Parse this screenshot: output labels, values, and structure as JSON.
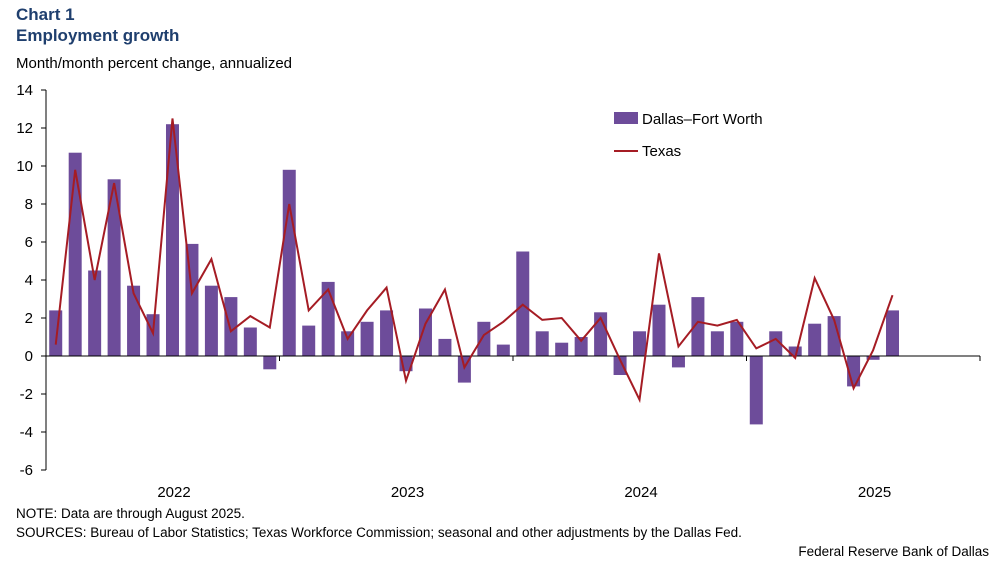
{
  "header": {
    "chart_label": "Chart 1",
    "title": "Employment growth",
    "subtitle": "Month/month  percent change, annualized"
  },
  "footer": {
    "note": "NOTE: Data are through August 2025.",
    "sources": "SOURCES: Bureau of Labor Statistics; Texas Workforce Commission; seasonal and other adjustments by the Dallas Fed.",
    "credit": "Federal Reserve Bank of Dallas"
  },
  "chart_data": {
    "type": "bar+line",
    "title": "Employment growth",
    "ylabel": "Month/month  percent change, annualized",
    "ylim": [
      -6,
      14
    ],
    "yticks": [
      -6,
      -4,
      -2,
      0,
      2,
      4,
      6,
      8,
      10,
      12,
      14
    ],
    "xtick_labels": [
      "2022",
      "2023",
      "2024",
      "2025"
    ],
    "x_start": "2022-01",
    "x_end": "2025-08",
    "legend_position": "top-right",
    "grid": false,
    "series": [
      {
        "name": "Dallas–Fort Worth",
        "type": "bar",
        "color": "#6d4c9a",
        "values": [
          2.4,
          10.7,
          4.5,
          9.3,
          3.7,
          2.2,
          12.2,
          5.9,
          3.7,
          3.1,
          1.5,
          -0.7,
          9.8,
          1.6,
          3.9,
          1.3,
          1.8,
          2.4,
          -0.8,
          2.5,
          0.9,
          -1.4,
          1.8,
          0.6,
          5.5,
          1.3,
          0.7,
          1.0,
          2.3,
          -1.0,
          1.3,
          2.7,
          -0.6,
          3.1,
          1.3,
          1.8,
          -3.6,
          1.3,
          0.5,
          1.7,
          2.1,
          -1.6,
          -0.2,
          2.4
        ]
      },
      {
        "name": "Texas",
        "type": "line",
        "color": "#a51c24",
        "values": [
          0.6,
          9.8,
          4.0,
          9.1,
          3.3,
          1.2,
          12.5,
          3.3,
          5.1,
          1.3,
          2.1,
          1.5,
          8.0,
          2.4,
          3.5,
          0.9,
          2.4,
          3.6,
          -1.3,
          1.7,
          3.5,
          -0.6,
          1.1,
          1.8,
          2.7,
          1.9,
          2.0,
          0.8,
          2.0,
          -0.2,
          -2.3,
          5.4,
          0.5,
          1.8,
          1.6,
          1.9,
          0.4,
          0.9,
          -0.1,
          4.1,
          1.9,
          -1.7,
          0.3,
          3.2
        ]
      }
    ]
  }
}
